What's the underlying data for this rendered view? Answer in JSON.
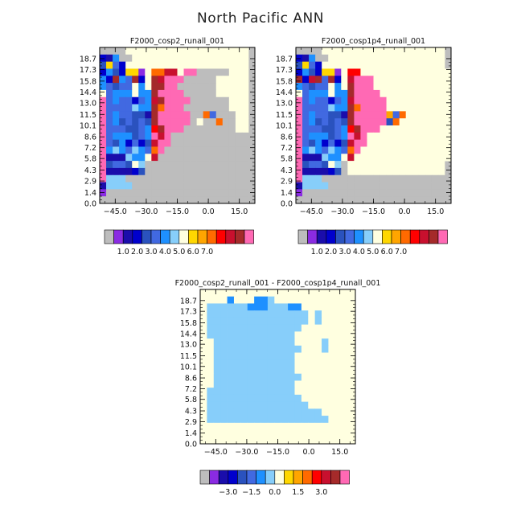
{
  "title": "North Pacific ANN",
  "chart_data": [
    {
      "type": "heatmap",
      "title": "F2000_cosp2_runall_001",
      "x_ticks": [
        "-45.0",
        "-30.0",
        "-15.0",
        "0.0",
        "15.0"
      ],
      "y_ticks": [
        "0.0",
        "1.4",
        "2.9",
        "4.3",
        "5.8",
        "7.2",
        "8.6",
        "10.1",
        "11.5",
        "13.0",
        "14.4",
        "15.8",
        "17.3",
        "18.7"
      ],
      "colorbar_labels": [
        "1.0",
        "2.0",
        "3.0",
        "4.0",
        "5.0",
        "6.0",
        "7.0"
      ],
      "colors": [
        "#bdbdbd",
        "#8a2be2",
        "#1a0dab",
        "#0000cd",
        "#2a52be",
        "#4169e1",
        "#1e90ff",
        "#87cefa",
        "#ffffe0",
        "#ffd700",
        "#ffa500",
        "#ff6a00",
        "#ff0000",
        "#c8102e",
        "#a52a2a",
        "#ff69b4"
      ],
      "rows": [
        "00008888888888888888888",
        "32600888888888888888888",
        "49538888888888888888888",
        "36439918BBDD8FF00000888",
        "63E65E38EDFFF0000088888",
        "65455868EEFF00000088888",
        "85666866EFFFF0000088888",
        "F5655356DEFFFF000000888",
        "F5555766EBFFF0000000888",
        "F5655442EFFFFF00B500088",
        "F5645454EFFFFF0800B0088",
        "F5554456CEFFF0000000088",
        "F5666456FDF000000000000",
        "F5463534DFF000000000000",
        "F6765765BF0000000000000",
        "F2227668D000000000000000",
        "F4554870000000000000000",
        "F22223400000000000000000",
        "F7770000000000000000000",
        "27777000000000000000000",
        "10000000000000000000000",
        "00000000000000000000000"
      ]
    },
    {
      "type": "heatmap",
      "title": "F2000_cosp1p4_runall_001",
      "x_ticks": [
        "-45.0",
        "-30.0",
        "-15.0",
        "0.0",
        "15.0"
      ],
      "y_ticks": [
        "0.0",
        "1.4",
        "2.9",
        "4.3",
        "5.8",
        "7.2",
        "8.6",
        "10.1",
        "11.5",
        "13.0",
        "14.4",
        "15.8",
        "17.3",
        "18.7"
      ],
      "colorbar_labels": [
        "1.0",
        "2.0",
        "3.0",
        "4.0",
        "5.0",
        "6.0",
        "7.0"
      ],
      "colors": [
        "#bdbdbd",
        "#8a2be2",
        "#1a0dab",
        "#0000cd",
        "#2a52be",
        "#4169e1",
        "#1e90ff",
        "#87cefa",
        "#ffffe0",
        "#ffd700",
        "#ffa500",
        "#ff6a00",
        "#ff0000",
        "#c8102e",
        "#a52a2a",
        "#ff69b4"
      ],
      "rows": [
        "00008888888888888888888",
        "32600888888888888888888",
        "49538888888888888888888",
        "36439918CC88888888888888",
        "E3DE5E38DFFF888888888888",
        "65455868EFFF888888888888",
        "85666866EFFFF88888888888",
        "F5655356DFFFFF8888888888",
        "F5555766EBFFFF8888888888",
        "F5655442EFFFFFA5B8888888",
        "F5645454EFFFFF4B88888888",
        "F5554456CEFFF88888888888",
        "F5666456FDF8888888888888",
        "F5463534DFF8888888888888",
        "F6765765BF88888888888888",
        "F2227668D888888888888888",
        "F4554870888888888888888",
        "F2222340888888888888888",
        "F7770000000000000000000",
        "27777000000000000000000",
        "10000000000000000000000",
        "00000000000000000000000"
      ]
    },
    {
      "type": "heatmap",
      "title": "F2000_cosp2_runall_001 - F2000_cosp1p4_runall_001",
      "x_ticks": [
        "-45.0",
        "-30.0",
        "-15.0",
        "0.0",
        "15.0"
      ],
      "y_ticks": [
        "0.0",
        "1.4",
        "2.9",
        "4.3",
        "5.8",
        "7.2",
        "8.6",
        "10.1",
        "11.5",
        "13.0",
        "14.4",
        "15.8",
        "17.3",
        "18.7"
      ],
      "colorbar_labels": [
        "-3.0",
        "-1.5",
        "0.0",
        "1.5",
        "3.0"
      ],
      "colors": [
        "#bdbdbd",
        "#8a2be2",
        "#1a0dab",
        "#0000cd",
        "#2a52be",
        "#4169e1",
        "#1e90ff",
        "#87cefa",
        "#ffffe0",
        "#ffd700",
        "#ffa500",
        "#ff6a00",
        "#ff0000",
        "#c8102e",
        "#a52a2a",
        "#ff69b4"
      ],
      "rows": [
        "88888888888888888888888",
        "88886888667888888888888",
        "87777776667776688888888",
        "87777777777777778788888",
        "87777777777777778788888",
        "87777777777777788888888",
        "87777777777777888888888",
        "88777777777777888878888",
        "88777777777777788878888",
        "88777777777777888888888",
        "88777777777777888888888",
        "88777777777777888888888",
        "88777777777777788888888",
        "88777777777777888888888",
        "87777777777777888888888",
        "87777777777777788888888",
        "87777777777777778888888",
        "87777777777777777788888",
        "87777777777777777778888",
        "88888888888888888888888",
        "88888888888888888888888",
        "88888888888888888888888"
      ]
    }
  ]
}
